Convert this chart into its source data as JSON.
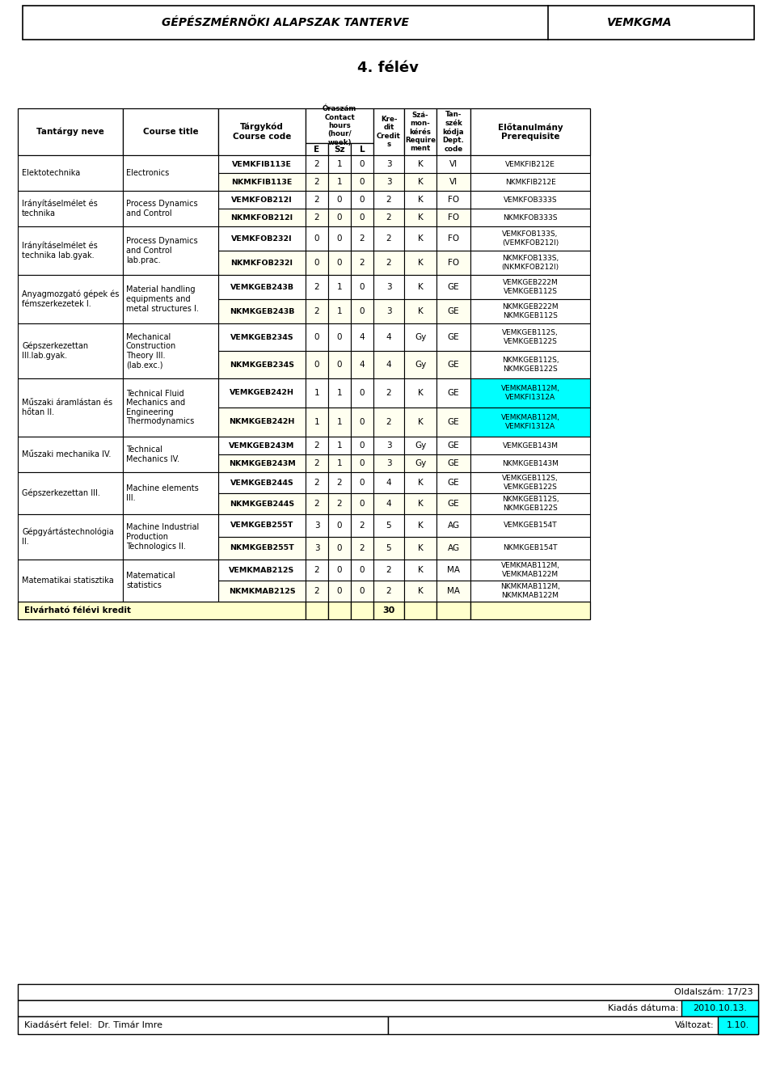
{
  "page_title": "GÉPÉSZMÉRNÖKI ALAPSZAK TANTERVE",
  "page_code": "VEMKGMA",
  "semester": "4. félév",
  "rows": [
    {
      "tantargy": "Elektotechnika",
      "course_title": "Electronics",
      "course_code": "VEMKFIB113E",
      "E": "2",
      "Sz": "1",
      "L": "0",
      "kredit": "3",
      "szamon": "K",
      "tanszek": "VI",
      "elotanulmany": "VEMKFIB212E",
      "row_bg": "white",
      "prereq_bg": "white"
    },
    {
      "tantargy": "",
      "course_title": "",
      "course_code": "NKMKFIB113E",
      "E": "2",
      "Sz": "1",
      "L": "0",
      "kredit": "3",
      "szamon": "K",
      "tanszek": "VI",
      "elotanulmany": "NKMKFIB212E",
      "row_bg": "#fffff0",
      "prereq_bg": "white"
    },
    {
      "tantargy": "Irányításelmélet és\ntechnika",
      "course_title": "Process Dynamics\nand Control",
      "course_code": "VEMKFOB212I",
      "E": "2",
      "Sz": "0",
      "L": "0",
      "kredit": "2",
      "szamon": "K",
      "tanszek": "FO",
      "elotanulmany": "VEMKFOB333S",
      "row_bg": "white",
      "prereq_bg": "white"
    },
    {
      "tantargy": "",
      "course_title": "",
      "course_code": "NKMKFOB212I",
      "E": "2",
      "Sz": "0",
      "L": "0",
      "kredit": "2",
      "szamon": "K",
      "tanszek": "FO",
      "elotanulmany": "NKMKFOB333S",
      "row_bg": "#fffff0",
      "prereq_bg": "white"
    },
    {
      "tantargy": "Irányításelmélet és\ntechnika lab.gyak.",
      "course_title": "Process Dynamics\nand Control\nlab.prac.",
      "course_code": "VEMKFOB232I",
      "E": "0",
      "Sz": "0",
      "L": "2",
      "kredit": "2",
      "szamon": "K",
      "tanszek": "FO",
      "elotanulmany": "VEMKFOB133S,\n(VEMKFOB212I)",
      "row_bg": "white",
      "prereq_bg": "white"
    },
    {
      "tantargy": "",
      "course_title": "",
      "course_code": "NKMKFOB232I",
      "E": "0",
      "Sz": "0",
      "L": "2",
      "kredit": "2",
      "szamon": "K",
      "tanszek": "FO",
      "elotanulmany": "NKMKFOB133S,\n(NKMKFOB212I)",
      "row_bg": "#fffff0",
      "prereq_bg": "white"
    },
    {
      "tantargy": "Anyagmozgató gépek és\nfémszerkezetek I.",
      "course_title": "Material handling\nequipments and\nmetal structures I.",
      "course_code": "VEMKGEB243B",
      "E": "2",
      "Sz": "1",
      "L": "0",
      "kredit": "3",
      "szamon": "K",
      "tanszek": "GE",
      "elotanulmany": "VEMKGEB222M\nVEMKGEB112S",
      "row_bg": "white",
      "prereq_bg": "white"
    },
    {
      "tantargy": "",
      "course_title": "",
      "course_code": "NKMKGEB243B",
      "E": "2",
      "Sz": "1",
      "L": "0",
      "kredit": "3",
      "szamon": "K",
      "tanszek": "GE",
      "elotanulmany": "NKMKGEB222M\nNKMKGEB112S",
      "row_bg": "#fffff0",
      "prereq_bg": "white"
    },
    {
      "tantargy": "Gépszerkezettan\nIII.lab.gyak.",
      "course_title": "Mechanical\nConstruction\nTheory III.\n(lab.exc.)",
      "course_code": "VEMKGEB234S",
      "E": "0",
      "Sz": "0",
      "L": "4",
      "kredit": "4",
      "szamon": "Gy",
      "tanszek": "GE",
      "elotanulmany": "VEMKGEB112S,\nVEMKGEB122S",
      "row_bg": "white",
      "prereq_bg": "white"
    },
    {
      "tantargy": "",
      "course_title": "",
      "course_code": "NKMKGEB234S",
      "E": "0",
      "Sz": "0",
      "L": "4",
      "kredit": "4",
      "szamon": "Gy",
      "tanszek": "GE",
      "elotanulmany": "NKMKGEB112S,\nNKMKGEB122S",
      "row_bg": "#fffff0",
      "prereq_bg": "white"
    },
    {
      "tantargy": "Műszaki áramlástan és\nhőtan II.",
      "course_title": "Technical Fluid\nMechanics and\nEngineering\nThermodynamics",
      "course_code": "VEMKGEB242H",
      "E": "1",
      "Sz": "1",
      "L": "0",
      "kredit": "2",
      "szamon": "K",
      "tanszek": "GE",
      "elotanulmany": "VEMKMAB112M,\nVEMKFI1312A",
      "row_bg": "white",
      "prereq_bg": "cyan"
    },
    {
      "tantargy": "",
      "course_title": "",
      "course_code": "NKMKGEB242H",
      "E": "1",
      "Sz": "1",
      "L": "0",
      "kredit": "2",
      "szamon": "K",
      "tanszek": "GE",
      "elotanulmany": "VEMKMAB112M,\nVEMKFI1312A",
      "row_bg": "#fffff0",
      "prereq_bg": "cyan"
    },
    {
      "tantargy": "Műszaki mechanika IV.",
      "course_title": "Technical\nMechanics IV.",
      "course_code": "VEMKGEB243M",
      "E": "2",
      "Sz": "1",
      "L": "0",
      "kredit": "3",
      "szamon": "Gy",
      "tanszek": "GE",
      "elotanulmany": "VEMKGEB143M",
      "row_bg": "white",
      "prereq_bg": "white"
    },
    {
      "tantargy": "",
      "course_title": "",
      "course_code": "NKMKGEB243M",
      "E": "2",
      "Sz": "1",
      "L": "0",
      "kredit": "3",
      "szamon": "Gy",
      "tanszek": "GE",
      "elotanulmany": "NKMKGEB143M",
      "row_bg": "#fffff0",
      "prereq_bg": "white"
    },
    {
      "tantargy": "Gépszerkezettan III.",
      "course_title": "Machine elements\nIII.",
      "course_code": "VEMKGEB244S",
      "E": "2",
      "Sz": "2",
      "L": "0",
      "kredit": "4",
      "szamon": "K",
      "tanszek": "GE",
      "elotanulmany": "VEMKGEB112S,\nVEMKGEB122S",
      "row_bg": "white",
      "prereq_bg": "white"
    },
    {
      "tantargy": "",
      "course_title": "",
      "course_code": "NKMKGEB244S",
      "E": "2",
      "Sz": "2",
      "L": "0",
      "kredit": "4",
      "szamon": "K",
      "tanszek": "GE",
      "elotanulmany": "NKMKGEB112S,\nNKMKGEB122S",
      "row_bg": "#fffff0",
      "prereq_bg": "white"
    },
    {
      "tantargy": "Gépgyártástechnológia\nII.",
      "course_title": "Machine Industrial\nProduction\nTechnologics II.",
      "course_code": "VEMKGEB255T",
      "E": "3",
      "Sz": "0",
      "L": "2",
      "kredit": "5",
      "szamon": "K",
      "tanszek": "AG",
      "elotanulmany": "VEMKGEB154T",
      "row_bg": "white",
      "prereq_bg": "white"
    },
    {
      "tantargy": "",
      "course_title": "",
      "course_code": "NKMKGEB255T",
      "E": "3",
      "Sz": "0",
      "L": "2",
      "kredit": "5",
      "szamon": "K",
      "tanszek": "AG",
      "elotanulmany": "NKMKGEB154T",
      "row_bg": "#fffff0",
      "prereq_bg": "white"
    },
    {
      "tantargy": "Matematikai statisztika",
      "course_title": "Matematical\nstatistics",
      "course_code": "VEMKMAB212S",
      "E": "2",
      "Sz": "0",
      "L": "0",
      "kredit": "2",
      "szamon": "K",
      "tanszek": "MA",
      "elotanulmany": "VEMKMAB112M,\nVEMKMAB122M",
      "row_bg": "white",
      "prereq_bg": "white"
    },
    {
      "tantargy": "",
      "course_title": "",
      "course_code": "NKMKMAB212S",
      "E": "2",
      "Sz": "0",
      "L": "0",
      "kredit": "2",
      "szamon": "K",
      "tanszek": "MA",
      "elotanulmany": "NKMKMAB112M,\nNKMKMAB122M",
      "row_bg": "#fffff0",
      "prereq_bg": "white"
    }
  ],
  "footer_row1": "Elvárható félévi kredit",
  "footer_kredit": "30",
  "footer_bg": "#ffffcc",
  "bottom_oldalszam": "Oldalszám: 17/23",
  "bottom_kiadas_label": "Kiadás dátuma:",
  "bottom_kiadas_val": "2010.10.13.",
  "bottom_kiadas_bg": "#00ffff",
  "bottom_kiadert": "Kiadásért felel:  Dr. Timár Imre",
  "bottom_valtozat_label": "Változat:",
  "bottom_valtozat_val": "1.10.",
  "bottom_valtozat_bg": "#00ffff"
}
